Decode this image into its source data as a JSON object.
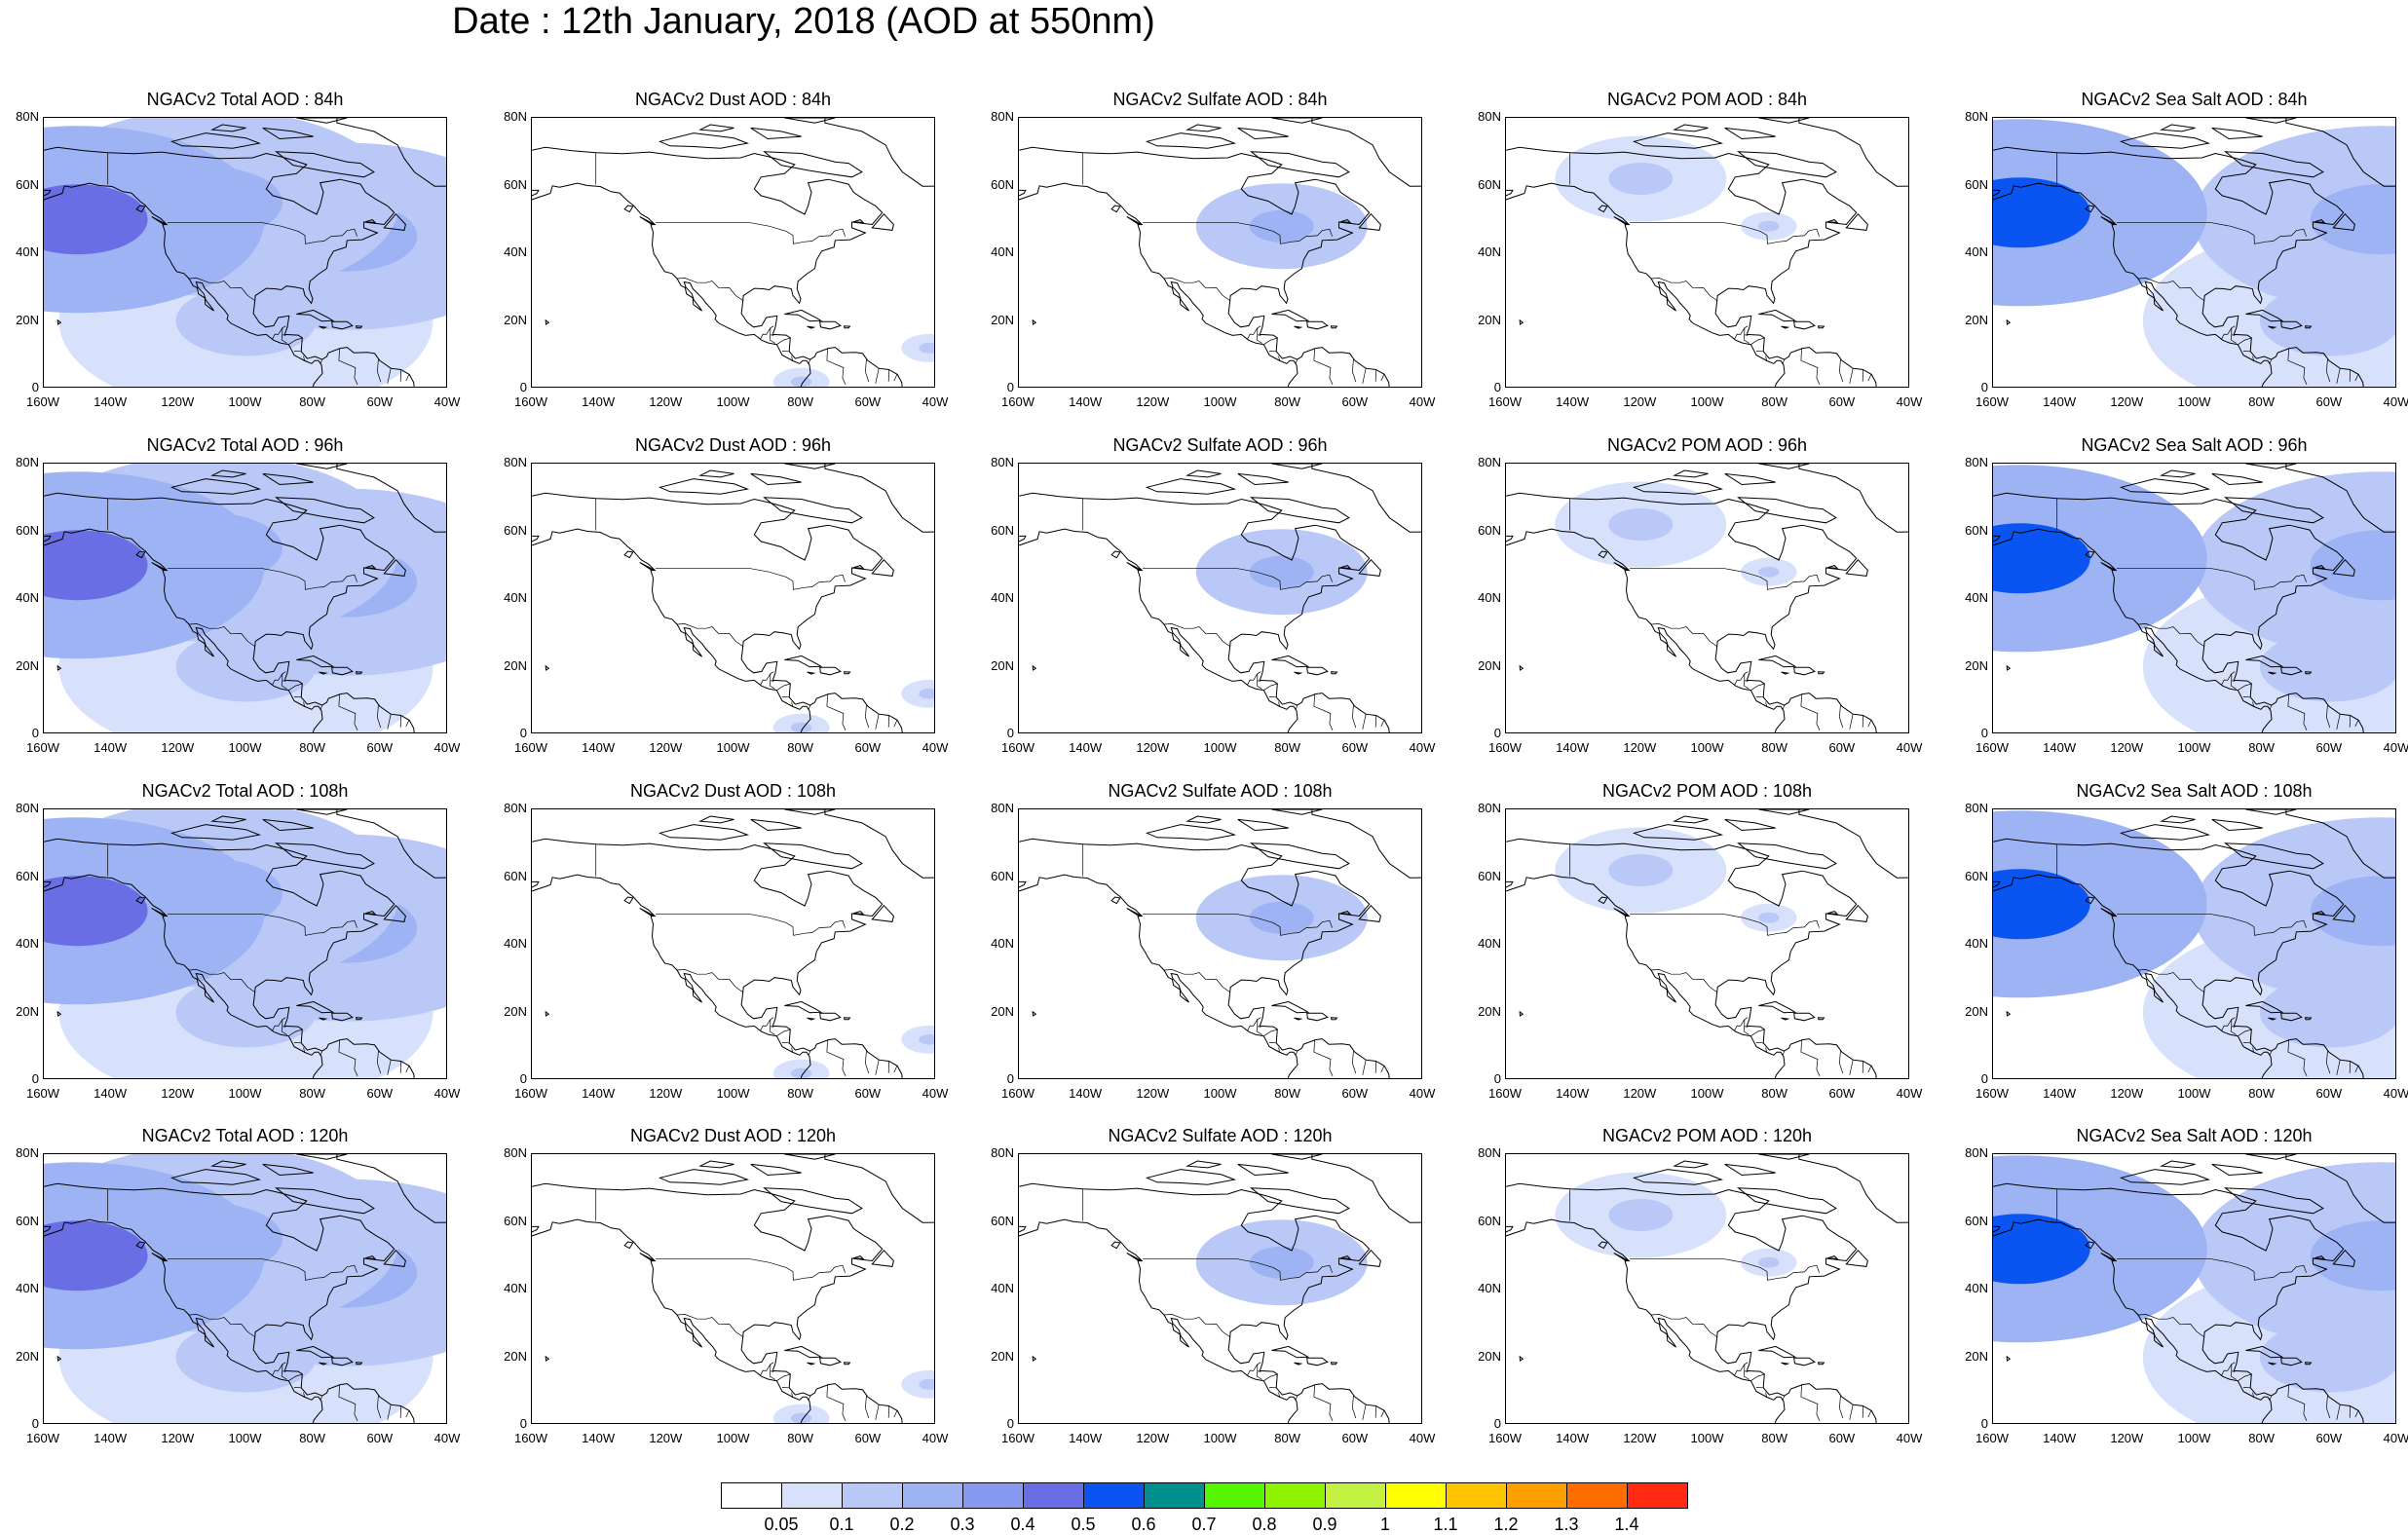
{
  "title": "Date : 12th January, 2018 (AOD at 550nm)",
  "columns": [
    "Total",
    "Dust",
    "Sulfate",
    "POM",
    "Sea Salt"
  ],
  "panels": [
    [
      "NGACv2 Total AOD : 84h",
      "NGACv2 Dust AOD : 84h",
      "NGACv2 Sulfate AOD : 84h",
      "NGACv2 POM AOD : 84h",
      "NGACv2 Sea Salt AOD : 84h"
    ],
    [
      "NGACv2 Total AOD : 96h",
      "NGACv2 Dust AOD : 96h",
      "NGACv2 Sulfate AOD : 96h",
      "NGACv2 POM AOD : 96h",
      "NGACv2 Sea Salt AOD : 96h"
    ],
    [
      "NGACv2 Total AOD : 108h",
      "NGACv2 Dust AOD : 108h",
      "NGACv2 Sulfate AOD : 108h",
      "NGACv2 POM AOD : 108h",
      "NGACv2 Sea Salt AOD : 108h"
    ],
    [
      "NGACv2 Total AOD : 120h",
      "NGACv2 Dust AOD : 120h",
      "NGACv2 Sulfate AOD : 120h",
      "NGACv2 POM AOD : 120h",
      "NGACv2 Sea Salt  AOD : 120h"
    ]
  ],
  "y_ticks": [
    "80N",
    "60N",
    "40N",
    "20N",
    "0"
  ],
  "x_ticks": [
    "160W",
    "140W",
    "120W",
    "100W",
    "80W",
    "60W",
    "40W"
  ],
  "map_extent": {
    "lon": [
      -160,
      -40
    ],
    "lat": [
      0,
      80
    ]
  },
  "colorbar": {
    "labels": [
      "0.05",
      "0.1",
      "0.2",
      "0.3",
      "0.4",
      "0.5",
      "0.6",
      "0.7",
      "0.8",
      "0.9",
      "1",
      "1.1",
      "1.2",
      "1.3",
      "1.4"
    ],
    "colors": [
      "#ffffff",
      "#d7e1fb",
      "#b9c8f6",
      "#9db3f4",
      "#8899f1",
      "#6a6ee4",
      "#0a55f2",
      "#00918f",
      "#56f500",
      "#8ef200",
      "#c4f244",
      "#ffff00",
      "#ffc400",
      "#ff9e00",
      "#ff6c00",
      "#ff2a10"
    ]
  },
  "aod_fields": {
    "Total": [
      {
        "lon": -150,
        "lat": 50,
        "level": 0.4,
        "spread": "wide"
      },
      {
        "lon": -110,
        "lat": 55,
        "level": 0.2,
        "spread": "wide"
      },
      {
        "lon": -70,
        "lat": 45,
        "level": 0.2,
        "spread": "wide"
      },
      {
        "lon": -100,
        "lat": 20,
        "level": 0.1,
        "spread": "wide"
      }
    ],
    "Dust": [
      {
        "lon": -42,
        "lat": 12,
        "level": 0.1,
        "spread": "small"
      },
      {
        "lon": -80,
        "lat": 2,
        "level": 0.1,
        "spread": "small"
      }
    ],
    "Sulfate": [
      {
        "lon": -82,
        "lat": 48,
        "level": 0.2,
        "spread": "medium"
      }
    ],
    "POM": [
      {
        "lon": -120,
        "lat": 62,
        "level": 0.1,
        "spread": "medium"
      },
      {
        "lon": -82,
        "lat": 48,
        "level": 0.1,
        "spread": "small"
      }
    ],
    "Sea Salt": [
      {
        "lon": -152,
        "lat": 52,
        "level": 0.5,
        "spread": "wide"
      },
      {
        "lon": -45,
        "lat": 50,
        "level": 0.2,
        "spread": "wide"
      },
      {
        "lon": -60,
        "lat": 20,
        "level": 0.1,
        "spread": "wide"
      }
    ]
  }
}
